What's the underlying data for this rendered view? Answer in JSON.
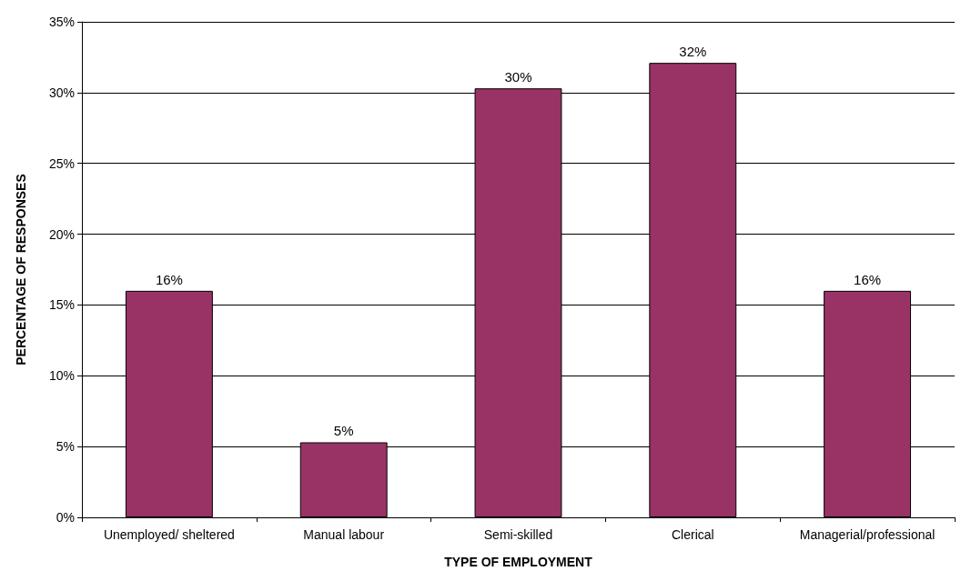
{
  "chart_data": {
    "type": "bar",
    "xlabel": "TYPE OF EMPLOYMENT",
    "ylabel": "PERCENTAGE OF RESPONSES",
    "categories": [
      "Unemployed/ sheltered",
      "Manual labour",
      "Semi-skilled",
      "Clerical",
      "Managerial/professional"
    ],
    "values": [
      16,
      5.3,
      30.3,
      32.1,
      16
    ],
    "value_labels": [
      "16%",
      "5%",
      "30%",
      "32%",
      "16%"
    ],
    "color": "#993366",
    "ylim": [
      0,
      35
    ],
    "yticks": [
      {
        "value": 0,
        "label": "0%"
      },
      {
        "value": 5,
        "label": "5%"
      },
      {
        "value": 10,
        "label": "10%"
      },
      {
        "value": 15,
        "label": "15%"
      },
      {
        "value": 20,
        "label": "20%"
      },
      {
        "value": 25,
        "label": "25%"
      },
      {
        "value": 30,
        "label": "30%"
      },
      {
        "value": 35,
        "label": "35%"
      }
    ],
    "grid": "y"
  }
}
